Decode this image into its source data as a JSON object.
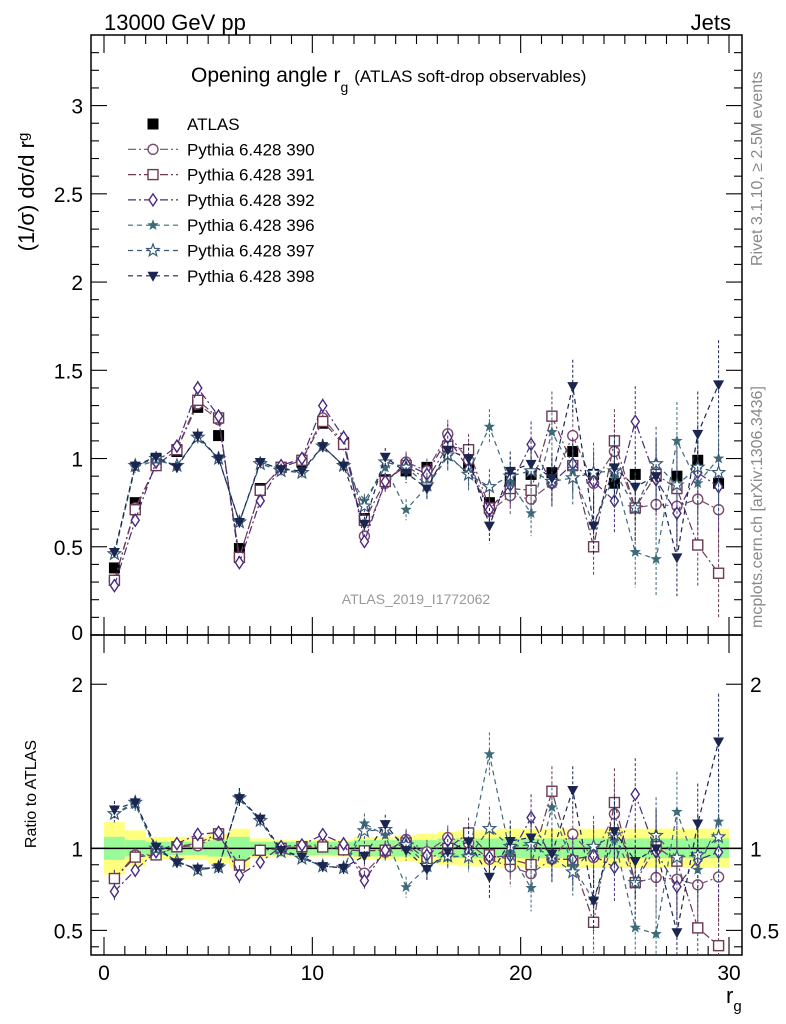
{
  "header": {
    "left": "13000 GeV pp",
    "right": "Jets"
  },
  "title": {
    "main": "Opening angle r",
    "sub": "g",
    "suffix": "(ATLAS soft-drop observables)"
  },
  "ylabel": {
    "main": "(1/σ) dσ/d r",
    "sub": "g"
  },
  "ratio_ylabel": "Ratio to ATLAS",
  "xlabel": {
    "main": "r",
    "sub": "g"
  },
  "watermark": "ATLAS_2019_I1772062",
  "side_text": {
    "rivet": "Rivet 3.1.10, ≥ 2.5M events",
    "mcplots": "mcplots.cern.ch [arXiv:1306.3436]"
  },
  "colors": {
    "data": "#000000",
    "p390": "#7a4a6e",
    "p391": "#6b3a52",
    "p392": "#4a2a7e",
    "p396": "#3d6b7a",
    "p397": "#3a5a78",
    "p398": "#1a2550",
    "band_inner": "#98fb98",
    "band_outer": "#ffff80"
  },
  "chart_data": [
    {
      "type": "scatter",
      "xlim": [
        -0.5,
        30.5
      ],
      "ylim": [
        0,
        3.4
      ],
      "yticks": [
        0.5,
        1,
        1.5,
        2,
        2.5,
        3
      ],
      "ytick_labels": [
        "0.5",
        "1",
        "1.5",
        "2",
        "2.5",
        "3"
      ],
      "xticks": [
        0,
        10,
        20,
        30
      ],
      "xtick_labels": [
        "0",
        "10",
        "20",
        "30"
      ],
      "bottom_tick_label": "0",
      "legend_position": "top-left",
      "x": [
        0.5,
        1.5,
        2.5,
        3.5,
        4.5,
        5.5,
        6.5,
        7.5,
        8.5,
        9.5,
        10.5,
        11.5,
        12.5,
        13.5,
        14.5,
        15.5,
        16.5,
        17.5,
        18.5,
        19.5,
        20.5,
        21.5,
        22.5,
        23.5,
        24.5,
        25.5,
        26.5,
        27.5,
        28.5,
        29.5
      ],
      "series": [
        {
          "name": "ATLAS",
          "key": "data",
          "marker": "square-filled",
          "values": [
            0.38,
            0.75,
            1.0,
            1.04,
            1.29,
            1.13,
            0.49,
            0.83,
            0.95,
            0.98,
            1.2,
            1.09,
            0.66,
            0.88,
            0.93,
            0.95,
            1.07,
            0.96,
            0.75,
            0.89,
            0.91,
            0.92,
            1.04,
            0.91,
            0.86,
            0.91,
            0.9,
            0.9,
            0.99,
            0.86
          ],
          "errors": [
            0.02,
            0.02,
            0.02,
            0.02,
            0.03,
            0.02,
            0.02,
            0.02,
            0.02,
            0.02,
            0.03,
            0.02,
            0.02,
            0.02,
            0.02,
            0.02,
            0.03,
            0.03,
            0.03,
            0.03,
            0.03,
            0.03,
            0.04,
            0.04,
            0.04,
            0.04,
            0.05,
            0.05,
            0.05,
            0.05
          ]
        },
        {
          "name": "Pythia 6.428 390",
          "key": "p390",
          "marker": "circle-open",
          "values": [
            0.31,
            0.72,
            0.96,
            1.05,
            1.31,
            1.22,
            0.44,
            0.82,
            0.95,
            0.99,
            1.23,
            1.09,
            0.56,
            0.86,
            0.98,
            0.93,
            1.14,
            0.99,
            0.7,
            0.79,
            0.77,
            0.86,
            1.13,
            0.86,
            1.04,
            0.72,
            0.74,
            0.73,
            0.77,
            0.71
          ],
          "errors": [
            0.02,
            0.03,
            0.03,
            0.03,
            0.04,
            0.04,
            0.03,
            0.03,
            0.03,
            0.03,
            0.04,
            0.04,
            0.04,
            0.05,
            0.06,
            0.07,
            0.08,
            0.09,
            0.1,
            0.11,
            0.13,
            0.14,
            0.15,
            0.17,
            0.18,
            0.2,
            0.21,
            0.22,
            0.24,
            0.25
          ]
        },
        {
          "name": "Pythia 6.428 391",
          "key": "p391",
          "marker": "square-open",
          "values": [
            0.31,
            0.71,
            0.96,
            1.05,
            1.33,
            1.23,
            0.44,
            0.82,
            0.95,
            0.99,
            1.21,
            1.08,
            0.65,
            0.87,
            0.96,
            0.88,
            1.07,
            1.05,
            0.72,
            0.83,
            0.82,
            1.24,
            0.96,
            0.5,
            1.1,
            0.72,
            0.91,
            0.83,
            0.51,
            0.35
          ],
          "errors": [
            0.02,
            0.03,
            0.03,
            0.03,
            0.04,
            0.04,
            0.03,
            0.03,
            0.03,
            0.03,
            0.04,
            0.04,
            0.04,
            0.05,
            0.06,
            0.07,
            0.08,
            0.09,
            0.1,
            0.11,
            0.13,
            0.14,
            0.15,
            0.17,
            0.18,
            0.2,
            0.21,
            0.22,
            0.24,
            0.25
          ]
        },
        {
          "name": "Pythia 6.428 392",
          "key": "p392",
          "marker": "diamond-open",
          "values": [
            0.28,
            0.65,
            0.98,
            1.07,
            1.4,
            1.24,
            0.41,
            0.76,
            0.96,
            1.0,
            1.3,
            1.12,
            0.53,
            0.87,
            0.97,
            0.91,
            1.12,
            0.94,
            0.71,
            0.85,
            1.08,
            0.86,
            0.97,
            0.87,
            0.76,
            1.21,
            0.88,
            0.69,
            0.92,
            0.84
          ],
          "errors": [
            0.02,
            0.03,
            0.03,
            0.03,
            0.04,
            0.04,
            0.03,
            0.03,
            0.03,
            0.03,
            0.04,
            0.04,
            0.04,
            0.05,
            0.06,
            0.07,
            0.08,
            0.09,
            0.1,
            0.11,
            0.13,
            0.14,
            0.15,
            0.17,
            0.18,
            0.2,
            0.21,
            0.22,
            0.24,
            0.25
          ]
        },
        {
          "name": "Pythia 6.428 396",
          "key": "p396",
          "marker": "star-filled",
          "values": [
            0.46,
            0.95,
            0.99,
            0.96,
            1.12,
            1.0,
            0.64,
            0.98,
            0.94,
            0.92,
            1.07,
            0.96,
            0.76,
            0.95,
            0.71,
            0.84,
            1.01,
            0.92,
            1.18,
            0.86,
            0.69,
            1.15,
            0.93,
            0.62,
            0.91,
            0.47,
            0.43,
            1.1,
            0.86,
            1.0
          ],
          "errors": [
            0.02,
            0.03,
            0.03,
            0.03,
            0.04,
            0.04,
            0.03,
            0.03,
            0.03,
            0.03,
            0.04,
            0.04,
            0.04,
            0.05,
            0.06,
            0.07,
            0.08,
            0.09,
            0.1,
            0.11,
            0.13,
            0.14,
            0.15,
            0.17,
            0.18,
            0.2,
            0.21,
            0.22,
            0.24,
            0.25
          ]
        },
        {
          "name": "Pythia 6.428 397",
          "key": "p397",
          "marker": "star-open",
          "values": [
            0.46,
            0.96,
            1.0,
            0.96,
            1.12,
            1.0,
            0.64,
            0.97,
            0.93,
            0.92,
            1.07,
            0.96,
            0.73,
            0.98,
            0.95,
            0.85,
            1.02,
            0.91,
            0.84,
            0.9,
            0.93,
            0.87,
            0.89,
            0.92,
            0.93,
            0.72,
            0.97,
            0.85,
            0.95,
            0.92
          ],
          "errors": [
            0.02,
            0.03,
            0.03,
            0.03,
            0.04,
            0.04,
            0.03,
            0.03,
            0.03,
            0.03,
            0.04,
            0.04,
            0.04,
            0.05,
            0.06,
            0.07,
            0.08,
            0.09,
            0.1,
            0.11,
            0.13,
            0.14,
            0.15,
            0.17,
            0.18,
            0.2,
            0.21,
            0.22,
            0.24,
            0.25
          ]
        },
        {
          "name": "Pythia 6.428 398",
          "key": "p398",
          "marker": "triangle-down-filled",
          "values": [
            0.47,
            0.96,
            1.01,
            0.95,
            1.13,
            1.0,
            0.64,
            0.98,
            0.94,
            0.93,
            1.07,
            0.96,
            0.63,
            1.01,
            0.92,
            0.83,
            1.05,
            1.0,
            0.62,
            0.93,
            0.97,
            0.89,
            1.41,
            0.62,
            0.95,
            0.84,
            0.9,
            0.44,
            1.14,
            1.42
          ],
          "errors": [
            0.02,
            0.03,
            0.03,
            0.03,
            0.04,
            0.04,
            0.03,
            0.03,
            0.03,
            0.03,
            0.04,
            0.04,
            0.04,
            0.05,
            0.06,
            0.07,
            0.08,
            0.09,
            0.1,
            0.11,
            0.13,
            0.14,
            0.15,
            0.17,
            0.18,
            0.2,
            0.21,
            0.22,
            0.24,
            0.25
          ]
        }
      ]
    },
    {
      "type": "scatter",
      "ylabel": "Ratio to ATLAS",
      "ylim": [
        0.35,
        2.3
      ],
      "yticks": [
        0.5,
        1,
        2
      ],
      "ytick_labels": [
        "0.5",
        "1",
        "2"
      ],
      "reference_line": 1,
      "band_inner": [
        0.07,
        0.05,
        0.04,
        0.04,
        0.04,
        0.05,
        0.07,
        0.04,
        0.04,
        0.04,
        0.04,
        0.04,
        0.05,
        0.05,
        0.05,
        0.05,
        0.06,
        0.06,
        0.06,
        0.06,
        0.06,
        0.06,
        0.06,
        0.06,
        0.06,
        0.06,
        0.06,
        0.06,
        0.06,
        0.06
      ],
      "band_outer": [
        0.16,
        0.11,
        0.07,
        0.07,
        0.07,
        0.09,
        0.12,
        0.06,
        0.05,
        0.05,
        0.05,
        0.05,
        0.07,
        0.07,
        0.08,
        0.09,
        0.1,
        0.11,
        0.11,
        0.12,
        0.12,
        0.12,
        0.12,
        0.12,
        0.12,
        0.12,
        0.12,
        0.12,
        0.12,
        0.12
      ]
    }
  ]
}
